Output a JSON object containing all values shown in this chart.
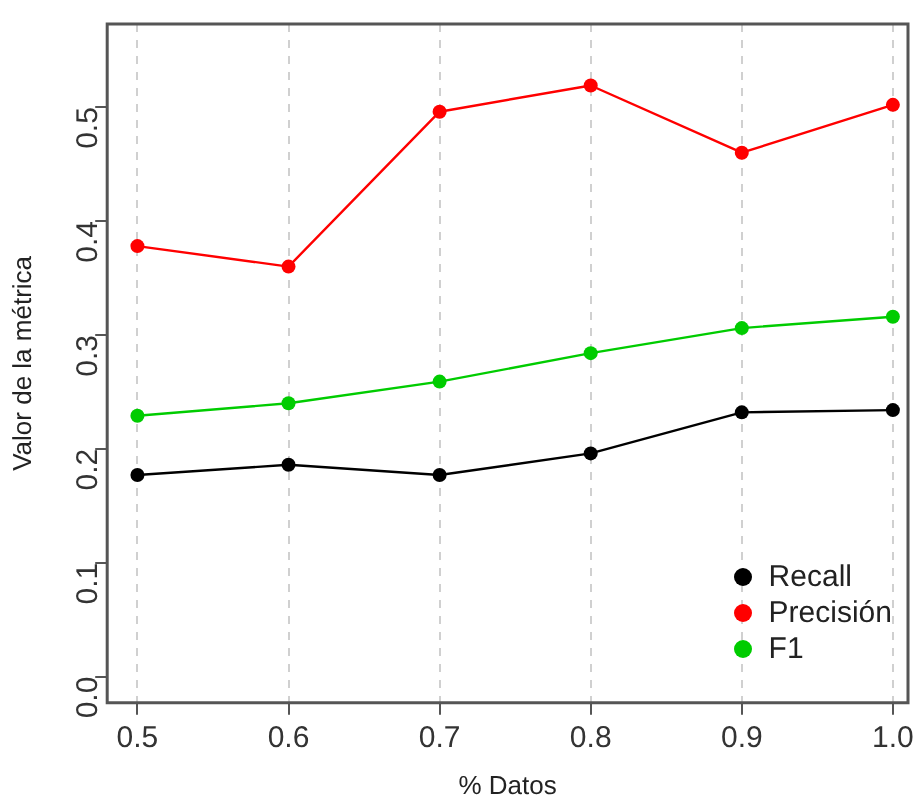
{
  "chart_data": {
    "type": "line",
    "xlabel": "% Datos",
    "ylabel": "Valor de la métrica",
    "x": [
      0.5,
      0.6,
      0.7,
      0.8,
      0.9,
      1.0
    ],
    "series": [
      {
        "name": "Recall",
        "color": "#000000",
        "values": [
          0.177,
          0.186,
          0.177,
          0.196,
          0.232,
          0.234
        ]
      },
      {
        "name": "Precisión",
        "color": "#ff0000",
        "values": [
          0.378,
          0.36,
          0.496,
          0.519,
          0.46,
          0.502
        ]
      },
      {
        "name": "F1",
        "color": "#00cc00",
        "values": [
          0.229,
          0.24,
          0.259,
          0.284,
          0.306,
          0.316
        ]
      }
    ],
    "xlim": [
      0.48,
      1.01
    ],
    "xticks": [
      {
        "value": 0.5,
        "label": "0.5"
      },
      {
        "value": 0.6,
        "label": "0.6"
      },
      {
        "value": 0.7,
        "label": "0.7"
      },
      {
        "value": 0.8,
        "label": "0.8"
      },
      {
        "value": 0.9,
        "label": "0.9"
      },
      {
        "value": 1.0,
        "label": "1.0"
      }
    ],
    "ylim": [
      -0.023,
      0.573
    ],
    "yticks": [
      {
        "value": 0,
        "label": "0.0"
      },
      {
        "value": 0.1,
        "label": "0.1"
      },
      {
        "value": 0.2,
        "label": "0.2"
      },
      {
        "value": 0.3,
        "label": "0.3"
      },
      {
        "value": 0.4,
        "label": "0.4"
      },
      {
        "value": 0.5,
        "label": "0.5"
      }
    ],
    "grid": "x",
    "legend": "bottom right",
    "marker": "circle",
    "line_style": "solid"
  }
}
